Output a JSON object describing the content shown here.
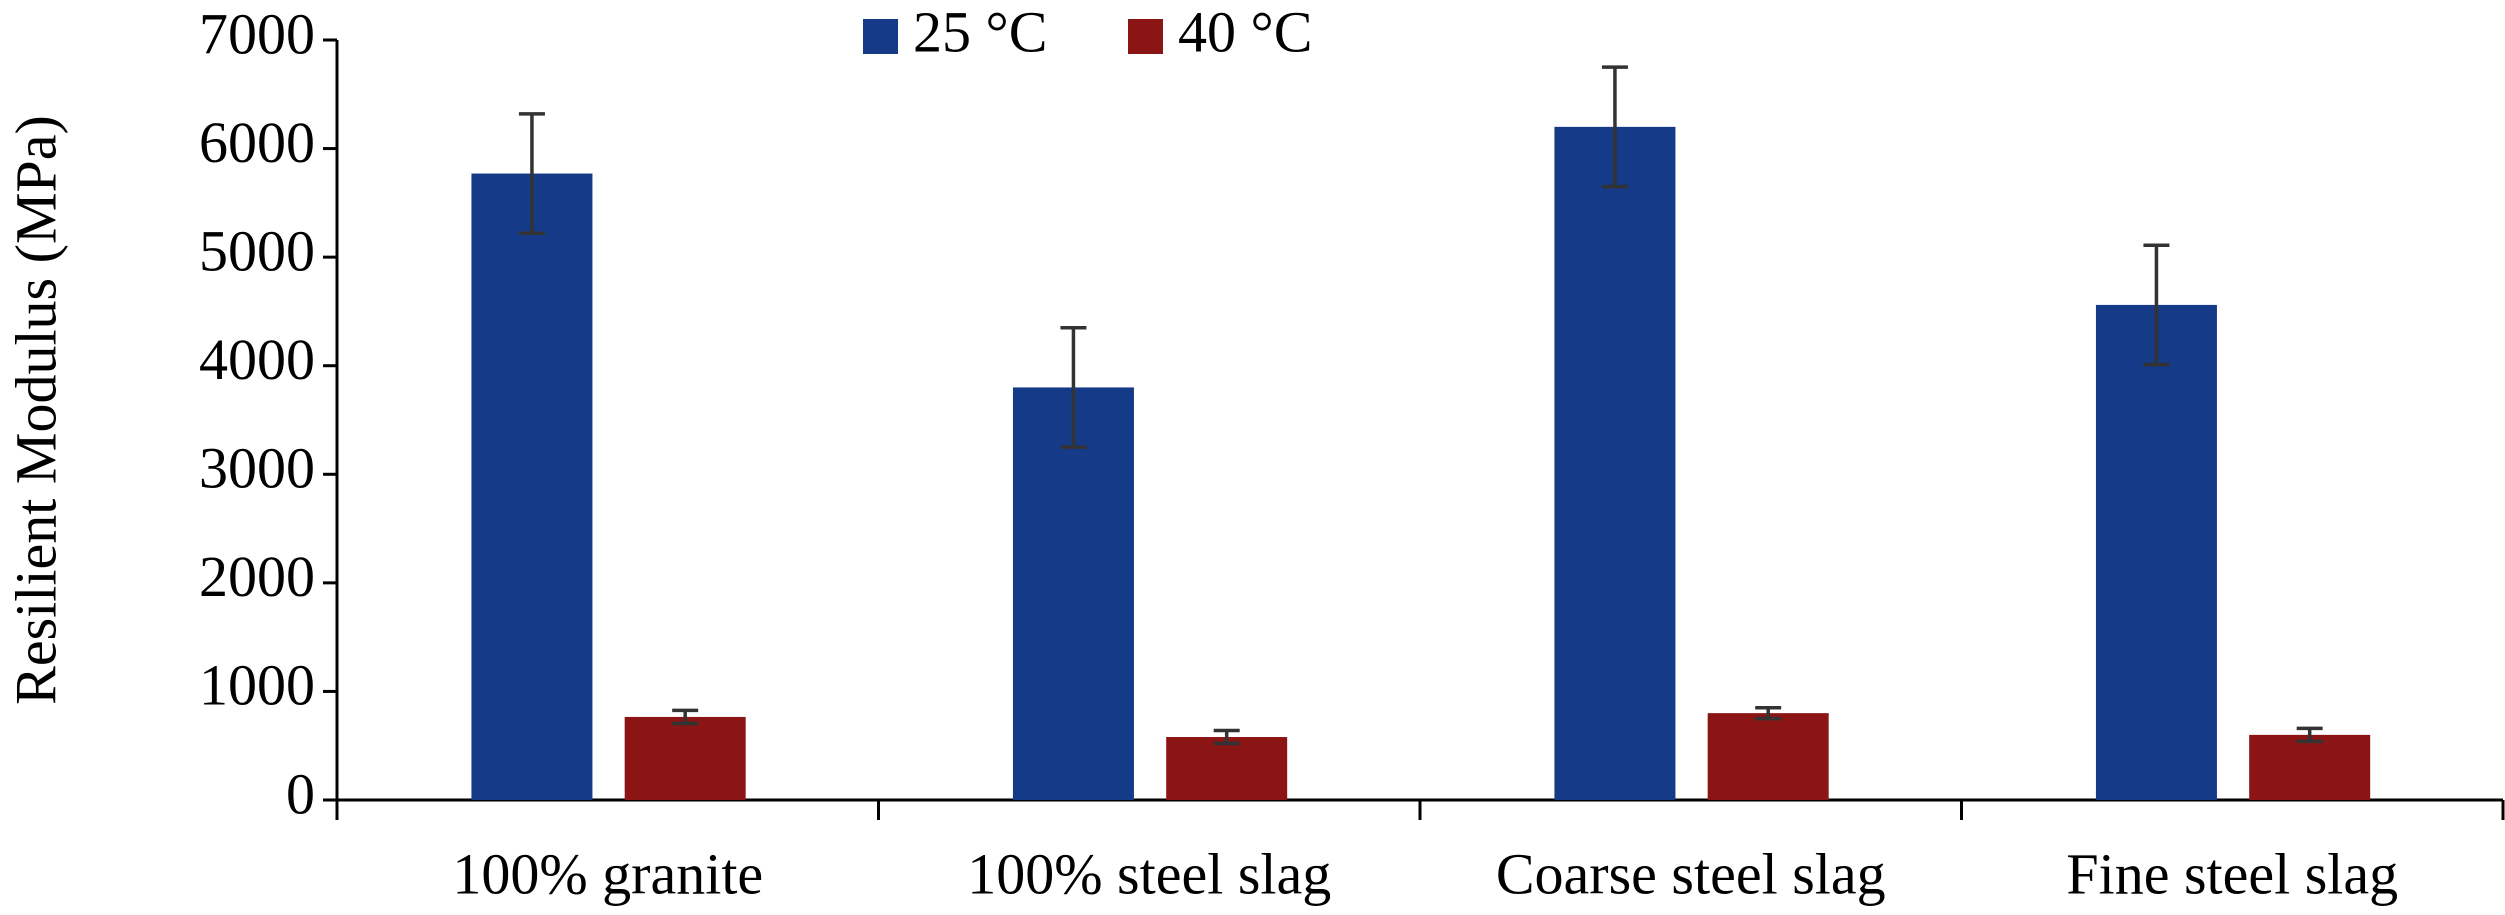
{
  "chart_data": {
    "type": "bar",
    "y_label": "Resilient Modulus (MPa)",
    "categories": [
      "100% granite",
      "100% steel slag",
      "Coarse steel slag",
      "Fine steel slag"
    ],
    "series": [
      {
        "name": "25 °C",
        "color": "#153a87",
        "values": [
          5770,
          3800,
          6200,
          4560
        ],
        "errors": [
          550,
          550,
          550,
          550
        ]
      },
      {
        "name": "40 °C",
        "color": "#8b1515",
        "values": [
          765,
          580,
          800,
          600
        ],
        "errors": [
          60,
          60,
          50,
          60
        ]
      }
    ],
    "ylim": [
      0,
      7000
    ],
    "yticks": [
      0,
      1000,
      2000,
      3000,
      4000,
      5000,
      6000,
      7000
    ],
    "grid": false,
    "legend": "top"
  }
}
